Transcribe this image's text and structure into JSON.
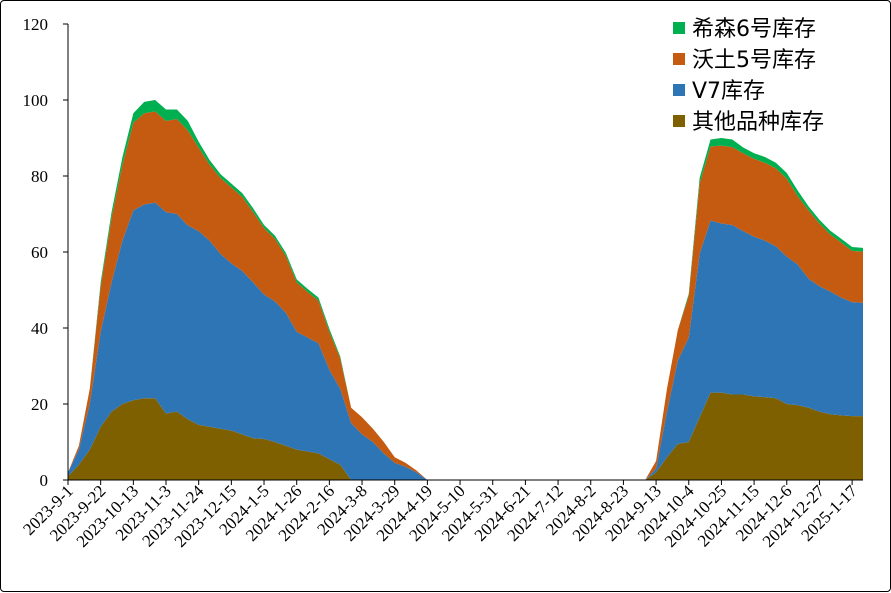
{
  "chart_data": {
    "type": "area",
    "stacked": true,
    "title": "",
    "xlabel": "",
    "ylabel": "",
    "ylim": [
      0,
      120
    ],
    "yticks": [
      0,
      20,
      40,
      60,
      80,
      100,
      120
    ],
    "grid": false,
    "legend_position": "top-right",
    "x_tick_labels": [
      "2023-9-1",
      "2023-9-22",
      "2023-10-13",
      "2023-11-3",
      "2023-11-24",
      "2023-12-15",
      "2024-1-5",
      "2024-1-26",
      "2024-2-16",
      "2024-3-8",
      "2024-3-29",
      "2024-4-19",
      "2024-5-10",
      "2024-5-31",
      "2024-6-21",
      "2024-7-12",
      "2024-8-2",
      "2024-8-23",
      "2024-9-13",
      "2024-10-4",
      "2024-10-25",
      "2024-11-15",
      "2024-12-6",
      "2024-12-27",
      "2025-1-17"
    ],
    "x": [
      "2023-9-1",
      "2023-9-8",
      "2023-9-15",
      "2023-9-22",
      "2023-9-29",
      "2023-10-6",
      "2023-10-13",
      "2023-10-20",
      "2023-10-27",
      "2023-11-3",
      "2023-11-10",
      "2023-11-17",
      "2023-11-24",
      "2023-12-1",
      "2023-12-8",
      "2023-12-15",
      "2023-12-22",
      "2023-12-29",
      "2024-1-5",
      "2024-1-12",
      "2024-1-19",
      "2024-1-26",
      "2024-2-2",
      "2024-2-9",
      "2024-2-16",
      "2024-2-23",
      "2024-3-1",
      "2024-3-8",
      "2024-3-15",
      "2024-3-22",
      "2024-3-29",
      "2024-4-5",
      "2024-4-12",
      "2024-4-19",
      "2024-4-26",
      "2024-5-3",
      "2024-5-10",
      "2024-5-17",
      "2024-5-24",
      "2024-5-31",
      "2024-6-7",
      "2024-6-14",
      "2024-6-21",
      "2024-6-28",
      "2024-7-5",
      "2024-7-12",
      "2024-7-19",
      "2024-7-26",
      "2024-8-2",
      "2024-8-9",
      "2024-8-16",
      "2024-8-23",
      "2024-8-30",
      "2024-9-6",
      "2024-9-13",
      "2024-9-20",
      "2024-9-27",
      "2024-10-4",
      "2024-10-11",
      "2024-10-18",
      "2024-10-25",
      "2024-11-1",
      "2024-11-8",
      "2024-11-15",
      "2024-11-22",
      "2024-11-29",
      "2024-12-6",
      "2024-12-13",
      "2024-12-20",
      "2024-12-27",
      "2025-1-3",
      "2025-1-10",
      "2025-1-17",
      "2025-1-24"
    ],
    "series": [
      {
        "name": "其他品种库存",
        "color": "#7f6000",
        "values": [
          1,
          4,
          8,
          14,
          18,
          20,
          21,
          21.5,
          21.5,
          17.5,
          18,
          16,
          14.5,
          14,
          13.5,
          13,
          12,
          11,
          10.8,
          10,
          9,
          8,
          7.5,
          7,
          5.5,
          4,
          0,
          0,
          0,
          0,
          0,
          0,
          0,
          0,
          0,
          0,
          0,
          0,
          0,
          0,
          0,
          0,
          0,
          0,
          0,
          0,
          0,
          0,
          0,
          0,
          0,
          0,
          0,
          0,
          2,
          6,
          9.5,
          10,
          16.5,
          23,
          23,
          22.5,
          22.5,
          22,
          21.8,
          21.5,
          20,
          19.7,
          19,
          18,
          17.3,
          17,
          16.8,
          16.8
        ]
      },
      {
        "name": "V7库存",
        "color": "#2e75b6",
        "values": [
          1,
          4,
          12,
          25,
          34,
          43,
          50,
          51,
          51.5,
          53,
          52,
          51,
          51,
          49,
          46,
          44,
          43,
          41,
          38,
          37,
          35,
          31,
          30,
          29,
          23.5,
          20,
          15,
          12,
          10,
          7,
          4.5,
          3.5,
          2,
          0,
          0,
          0,
          0,
          0,
          0,
          0,
          0,
          0,
          0,
          0,
          0,
          0,
          0,
          0,
          0,
          0,
          0,
          0,
          0,
          0,
          1,
          12,
          22,
          27.5,
          43,
          45.3,
          44.5,
          44.6,
          43,
          42,
          41.2,
          40,
          38.8,
          37,
          34,
          33,
          32.3,
          31,
          30,
          29.8
        ]
      },
      {
        "name": "沃土5号库存",
        "color": "#c55a11",
        "values": [
          0,
          1,
          4,
          12,
          17,
          20,
          23,
          24,
          24,
          24,
          25,
          25,
          22,
          20,
          20,
          20,
          19.5,
          18.5,
          17.5,
          16.5,
          15,
          13,
          12,
          11.2,
          10,
          8,
          4,
          4.5,
          3.5,
          3,
          1.5,
          1,
          0.5,
          0,
          0,
          0,
          0,
          0,
          0,
          0,
          0,
          0,
          0,
          0,
          0,
          0,
          0,
          0,
          0,
          0,
          0,
          0,
          0,
          0,
          2,
          6,
          8,
          11,
          18.5,
          19.5,
          20.5,
          20.5,
          20.5,
          20.5,
          20.5,
          20.5,
          20.5,
          18,
          18,
          16.5,
          15,
          14.5,
          13.5,
          13.5
        ]
      },
      {
        "name": "希森6号库存",
        "color": "#00b050",
        "values": [
          0,
          0,
          0,
          1,
          1.5,
          2,
          2.5,
          3,
          3,
          3,
          2.5,
          2.5,
          1.5,
          1.2,
          1,
          1,
          1,
          1,
          0.8,
          0.8,
          0.8,
          0.8,
          0.8,
          0.8,
          0.8,
          0.5,
          0,
          0,
          0,
          0,
          0,
          0,
          0,
          0,
          0,
          0,
          0,
          0,
          0,
          0,
          0,
          0,
          0,
          0,
          0,
          0,
          0,
          0,
          0,
          0,
          0,
          0,
          0,
          0,
          0,
          0,
          0,
          0.5,
          1.5,
          1.8,
          2,
          2,
          1.5,
          1.5,
          1.5,
          1.5,
          1.5,
          1.5,
          1,
          1,
          1,
          1,
          1,
          1
        ]
      }
    ]
  }
}
